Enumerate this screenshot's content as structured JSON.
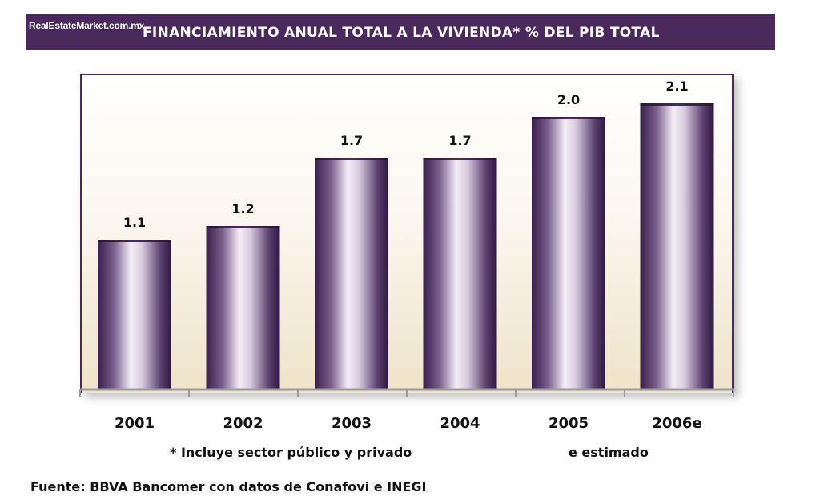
{
  "header": {
    "site": "RealEstateMarket.com.mx",
    "title": "FINANCIAMIENTO ANUAL TOTAL A LA VIVIENDA*  % DEL PIB TOTAL"
  },
  "notes": {
    "left": "* Incluye sector público y privado",
    "right": "e estimado"
  },
  "source": "Fuente: BBVA Bancomer con datos de Conafovi e INEGI",
  "colors": {
    "header": "#4a2a5c",
    "bar_dark": "#3e2450",
    "bar_light": "#f4eef6"
  },
  "chart_data": {
    "type": "bar",
    "categories": [
      "2001",
      "2002",
      "2003",
      "2004",
      "2005",
      "2006e"
    ],
    "values": [
      1.1,
      1.2,
      1.7,
      1.7,
      2.0,
      2.1
    ],
    "data_labels": [
      "1.1",
      "1.2",
      "1.7",
      "1.7",
      "2.0",
      "2.1"
    ],
    "title": "FINANCIAMIENTO ANUAL TOTAL A LA VIVIENDA*  % DEL PIB TOTAL",
    "xlabel": "",
    "ylabel": "",
    "grid": false,
    "legend": "none"
  }
}
